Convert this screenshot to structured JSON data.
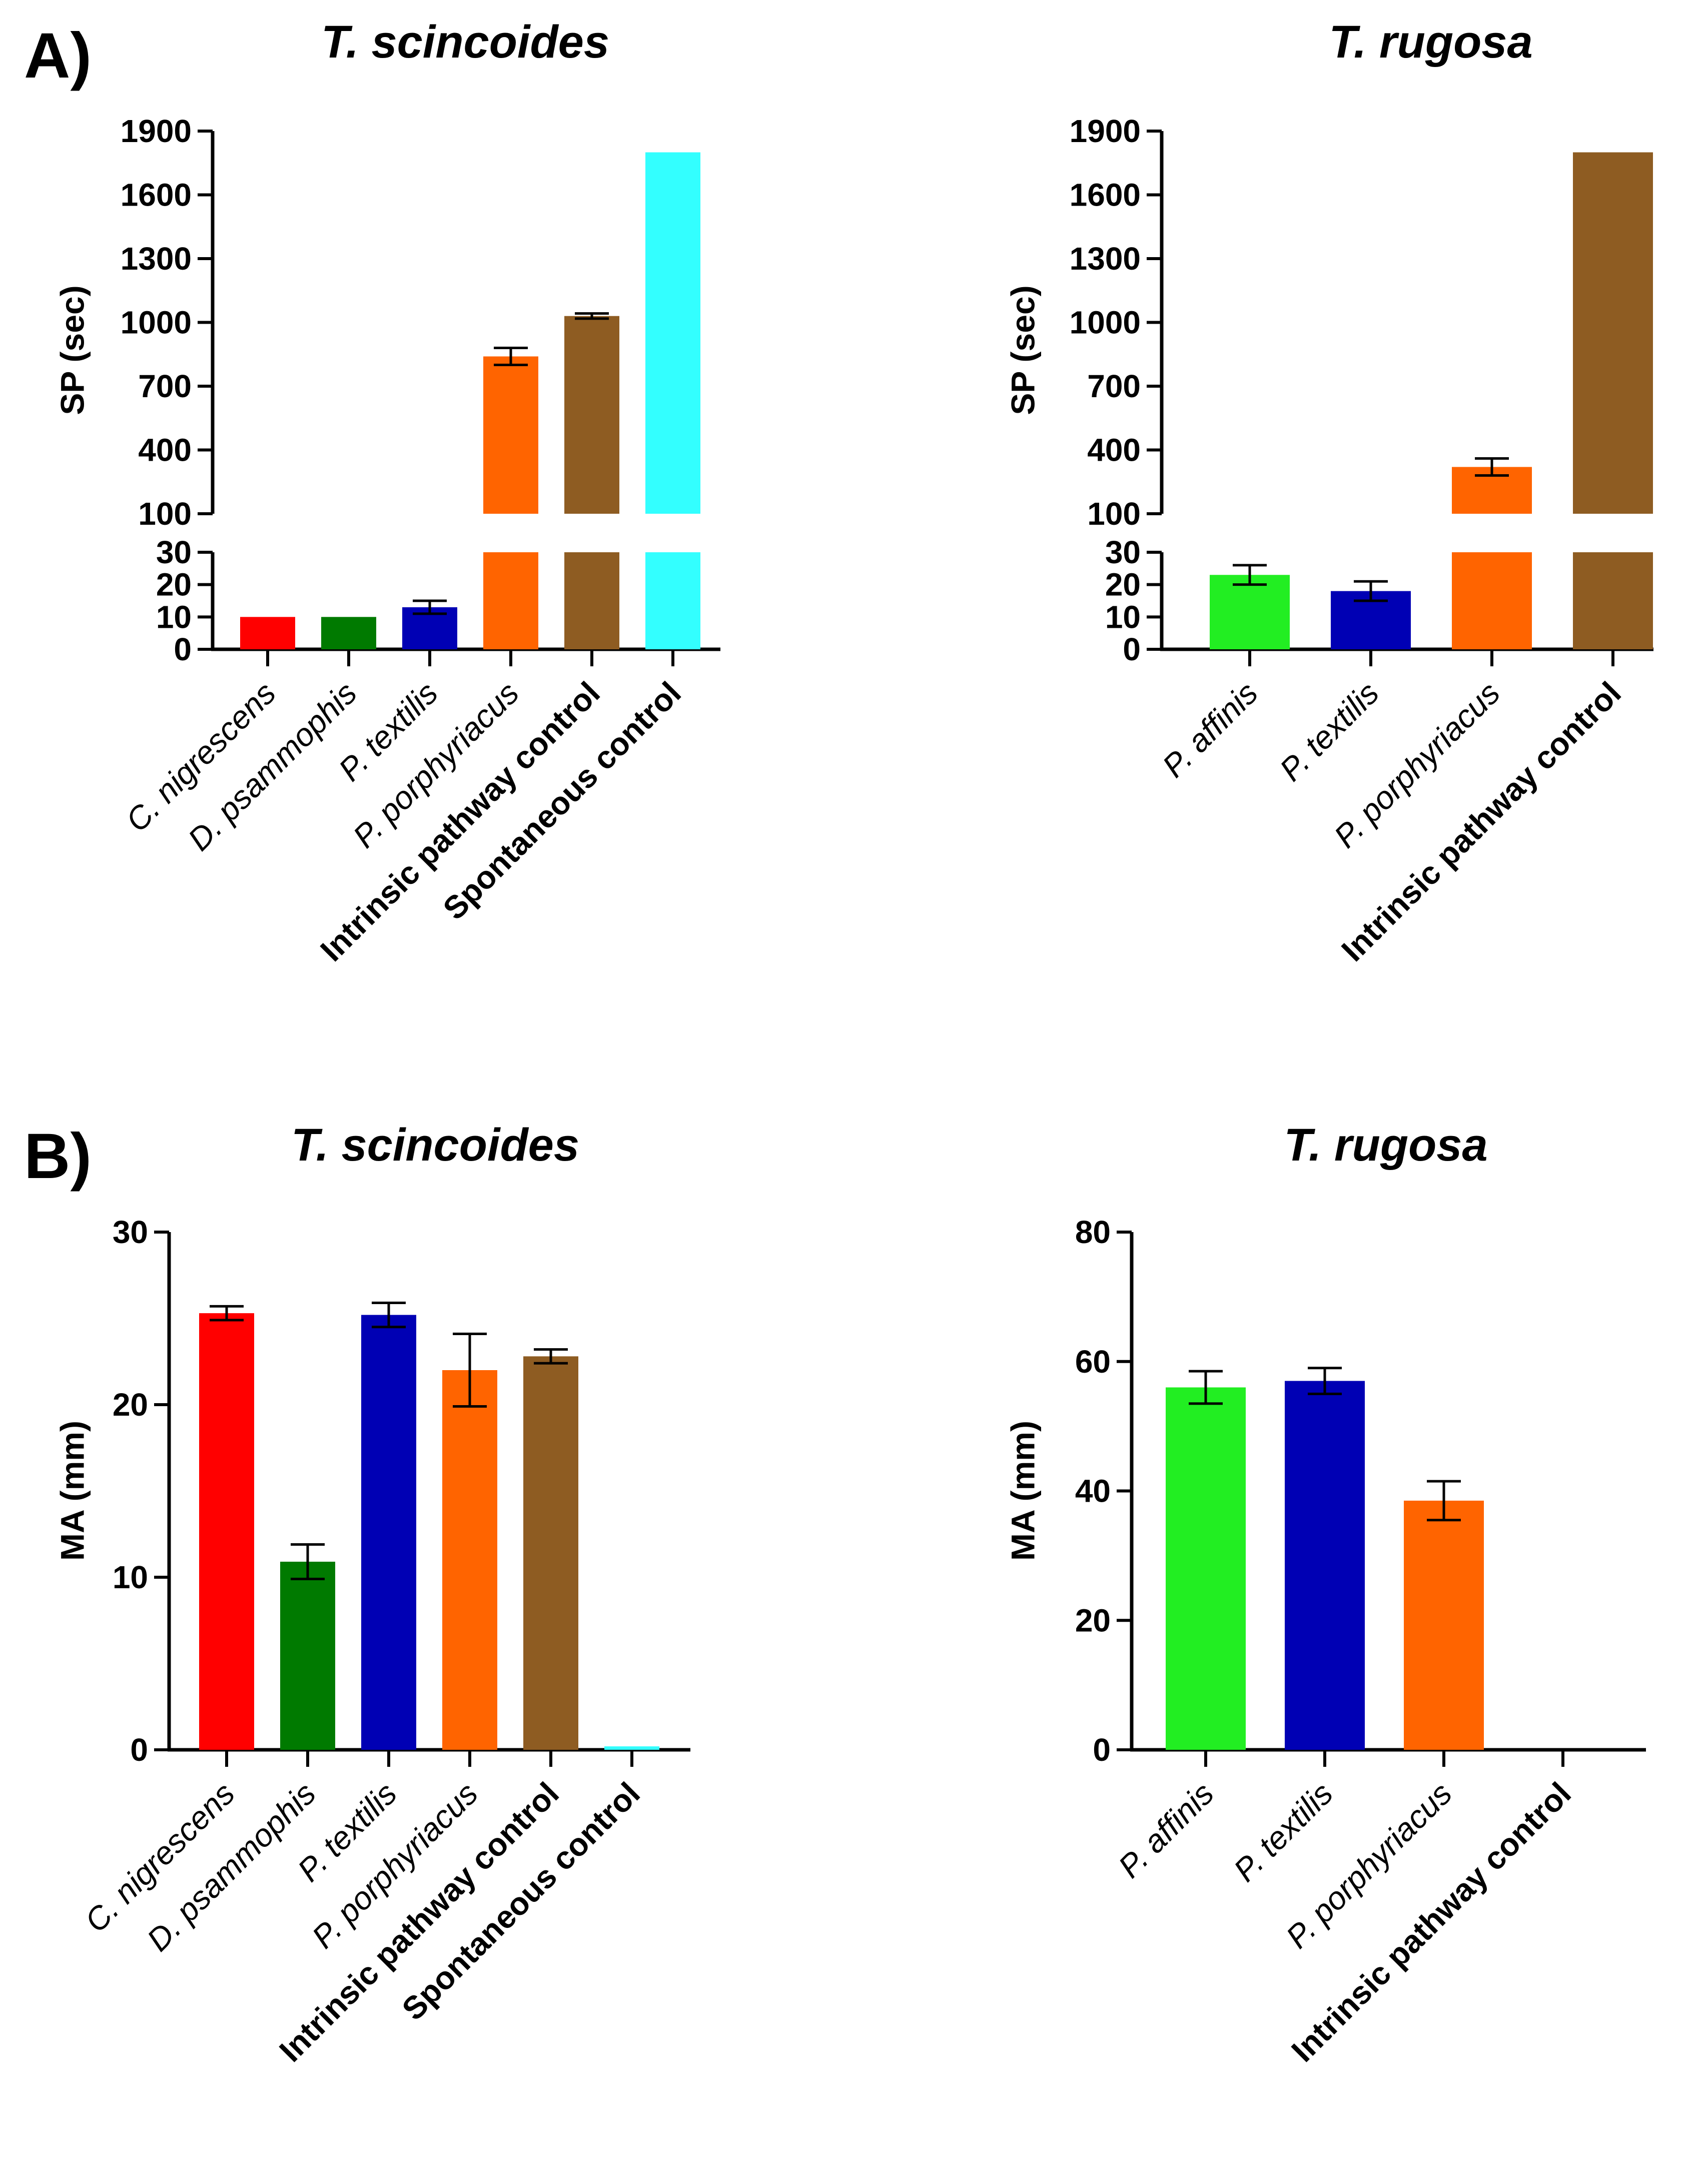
{
  "panels": {
    "A": {
      "label": "A)"
    },
    "B": {
      "label": "B)"
    }
  },
  "colors": {
    "C. nigrescens": "#ff0000",
    "D. psammophis": "#007a00",
    "P. textilis": "#0000b4",
    "P. porphyriacus": "#ff6400",
    "Intrinsic pathway control": "#8e5c22",
    "Spontaneous control": "#33ffff",
    "P. affinis": "#22ee22"
  },
  "chart_data": [
    {
      "id": "A-scincoides",
      "type": "bar",
      "title": "T. scincoides",
      "xlabel": "",
      "ylabel": "SP (sec)",
      "broken_axis": true,
      "lower_range": [
        0,
        30
      ],
      "lower_ticks": [
        "0",
        "10",
        "20",
        "30"
      ],
      "upper_range": [
        100,
        1900
      ],
      "upper_ticks": [
        "100",
        "400",
        "700",
        "1000",
        "1300",
        "1600",
        "1900"
      ],
      "categories": [
        "C. nigrescens",
        "D. psammophis",
        "P. textilis",
        "P. porphyriacus",
        "Intrinsic pathway control",
        "Spontaneous control"
      ],
      "bold_categories": [
        "Intrinsic pathway control",
        "Spontaneous control"
      ],
      "values": [
        10,
        10,
        13,
        840,
        1030,
        1800
      ],
      "errors": [
        0,
        0,
        2,
        40,
        12,
        0
      ]
    },
    {
      "id": "A-rugosa",
      "type": "bar",
      "title": "T. rugosa",
      "xlabel": "",
      "ylabel": "SP (sec)",
      "broken_axis": true,
      "lower_range": [
        0,
        30
      ],
      "lower_ticks": [
        "0",
        "10",
        "20",
        "30"
      ],
      "upper_range": [
        100,
        1900
      ],
      "upper_ticks": [
        "100",
        "400",
        "700",
        "1000",
        "1300",
        "1600",
        "1900"
      ],
      "categories": [
        "P. affinis",
        "P. textilis",
        "P. porphyriacus",
        "Intrinsic pathway control"
      ],
      "bold_categories": [
        "Intrinsic pathway control"
      ],
      "values": [
        23,
        18,
        320,
        1800
      ],
      "errors": [
        3,
        3,
        40,
        0
      ]
    },
    {
      "id": "B-scincoides",
      "type": "bar",
      "title": "T. scincoides",
      "xlabel": "",
      "ylabel": "MA (mm)",
      "broken_axis": false,
      "ylim": [
        0,
        30
      ],
      "yticks": [
        "0",
        "10",
        "20",
        "30"
      ],
      "categories": [
        "C. nigrescens",
        "D. psammophis",
        "P. textilis",
        "P. porphyriacus",
        "Intrinsic pathway control",
        "Spontaneous control"
      ],
      "bold_categories": [
        "Intrinsic pathway control",
        "Spontaneous control"
      ],
      "values": [
        25.3,
        10.9,
        25.2,
        22.0,
        22.8,
        0.2
      ],
      "errors": [
        0.4,
        1.0,
        0.7,
        2.1,
        0.4,
        0
      ]
    },
    {
      "id": "B-rugosa",
      "type": "bar",
      "title": "T. rugosa",
      "xlabel": "",
      "ylabel": "MA (mm)",
      "broken_axis": false,
      "ylim": [
        0,
        80
      ],
      "yticks": [
        "0",
        "20",
        "40",
        "60",
        "80"
      ],
      "categories": [
        "P. affinis",
        "P. textilis",
        "P. porphyriacus",
        "Intrinsic pathway control"
      ],
      "bold_categories": [
        "Intrinsic pathway control"
      ],
      "values": [
        56,
        57,
        38.5,
        0
      ],
      "errors": [
        2.5,
        2,
        3,
        0
      ]
    }
  ]
}
